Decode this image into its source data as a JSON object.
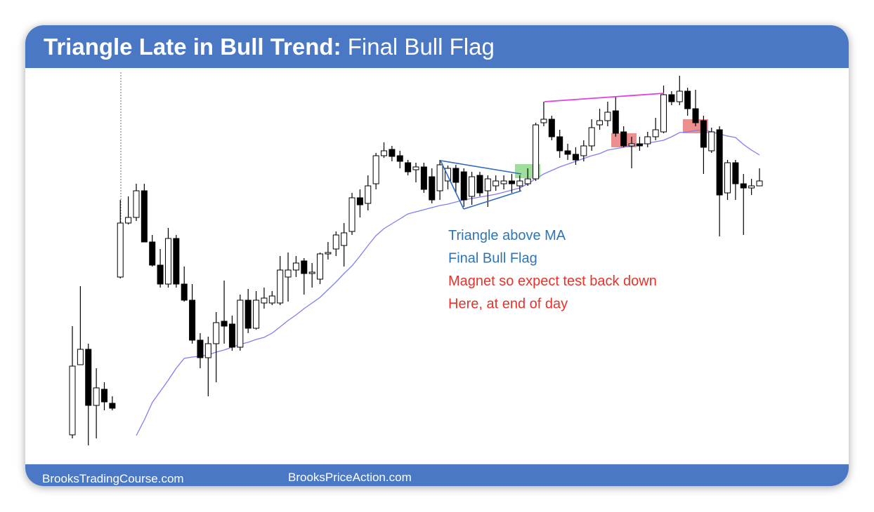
{
  "title": {
    "bold": "Triangle Late in Bull Trend:",
    "regular": "Final Bull Flag"
  },
  "footer": [
    "BrooksTradingCourse.com",
    "BrooksPriceAction.com"
  ],
  "chart_data": {
    "type": "candlestick",
    "ylim": [
      60,
      600
    ],
    "bull_color": "#ffffff",
    "bear_color": "#000000",
    "open": [
      80,
      180,
      202,
      122,
      145,
      125,
      305,
      382,
      390,
      428,
      355,
      322,
      295,
      360,
      295,
      272,
      215,
      190,
      210,
      242,
      238,
      205,
      272,
      232,
      268,
      268,
      268,
      305,
      315,
      328,
      310,
      302,
      338,
      345,
      350,
      370,
      418,
      410,
      438,
      478,
      487,
      478,
      468,
      458,
      462,
      448,
      428,
      442,
      460,
      455,
      420,
      450,
      428,
      435,
      438,
      442,
      435,
      438,
      445,
      525,
      530,
      505,
      485,
      480,
      478,
      492,
      522,
      528,
      542,
      512,
      492,
      495,
      495,
      505,
      512,
      565,
      555,
      570,
      545,
      528,
      485,
      515,
      425,
      468,
      438,
      432,
      435
    ],
    "high": [
      235,
      292,
      210,
      175,
      155,
      135,
      415,
      420,
      438,
      438,
      365,
      345,
      375,
      365,
      320,
      295,
      225,
      220,
      255,
      300,
      250,
      280,
      288,
      285,
      290,
      285,
      335,
      340,
      335,
      332,
      325,
      340,
      355,
      370,
      382,
      425,
      430,
      450,
      482,
      497,
      492,
      485,
      472,
      468,
      468,
      460,
      472,
      464,
      465,
      460,
      455,
      455,
      450,
      450,
      450,
      452,
      450,
      460,
      525,
      555,
      535,
      515,
      495,
      490,
      500,
      530,
      545,
      555,
      562,
      520,
      505,
      505,
      512,
      532,
      578,
      570,
      592,
      575,
      572,
      535,
      518,
      520,
      472,
      472,
      452,
      445,
      460
    ],
    "low": [
      75,
      180,
      65,
      75,
      115,
      115,
      303,
      380,
      385,
      355,
      320,
      290,
      290,
      290,
      270,
      210,
      175,
      135,
      155,
      210,
      200,
      200,
      225,
      230,
      260,
      265,
      265,
      270,
      305,
      280,
      290,
      295,
      330,
      335,
      320,
      365,
      390,
      400,
      430,
      475,
      470,
      460,
      450,
      440,
      425,
      410,
      415,
      430,
      425,
      405,
      408,
      420,
      405,
      428,
      430,
      425,
      428,
      435,
      442,
      520,
      500,
      475,
      472,
      465,
      470,
      485,
      515,
      520,
      505,
      490,
      460,
      485,
      490,
      500,
      510,
      550,
      550,
      535,
      520,
      452,
      482,
      363,
      415,
      415,
      365,
      422,
      435
    ],
    "close": [
      178,
      202,
      122,
      147,
      127,
      118,
      382,
      390,
      428,
      355,
      322,
      295,
      360,
      295,
      272,
      215,
      190,
      210,
      240,
      235,
      205,
      272,
      232,
      272,
      275,
      278,
      315,
      315,
      325,
      310,
      312,
      338,
      340,
      365,
      368,
      418,
      408,
      435,
      478,
      485,
      477,
      470,
      455,
      462,
      430,
      415,
      465,
      460,
      440,
      415,
      448,
      425,
      445,
      442,
      442,
      438,
      442,
      445,
      522,
      530,
      505,
      485,
      480,
      472,
      492,
      518,
      528,
      540,
      510,
      492,
      495,
      492,
      505,
      515,
      565,
      555,
      570,
      545,
      525,
      490,
      512,
      422,
      468,
      438,
      432,
      435,
      442
    ],
    "moving_average": {
      "color": "#7f7ff2",
      "values": [
        null,
        null,
        null,
        null,
        null,
        null,
        null,
        null,
        79,
        101,
        126,
        142,
        158,
        175,
        189,
        191,
        192,
        194,
        198,
        201,
        205,
        209,
        212,
        216,
        219,
        225,
        234,
        243,
        251,
        260,
        268,
        276,
        287,
        298,
        310,
        321,
        335,
        350,
        364,
        374,
        381,
        388,
        395,
        398,
        401,
        404,
        407,
        409,
        412,
        415,
        417,
        419,
        421,
        423,
        426,
        429,
        432,
        438,
        445,
        452,
        457,
        462,
        466,
        470,
        474,
        478,
        481,
        486,
        488,
        490,
        492,
        494,
        496,
        498,
        500,
        505,
        511,
        512,
        514,
        515,
        512,
        509,
        506,
        504,
        494,
        486,
        479
      ]
    },
    "annotations": [
      {
        "text": "Triangle above MA",
        "color": "#2e75b6"
      },
      {
        "text": "Final Bull Flag",
        "color": "#2e75b6"
      },
      {
        "text": "Magnet so expect test back down",
        "color": "#e8322a"
      },
      {
        "text": "Here, at end of day",
        "color": "#e8322a"
      }
    ]
  }
}
